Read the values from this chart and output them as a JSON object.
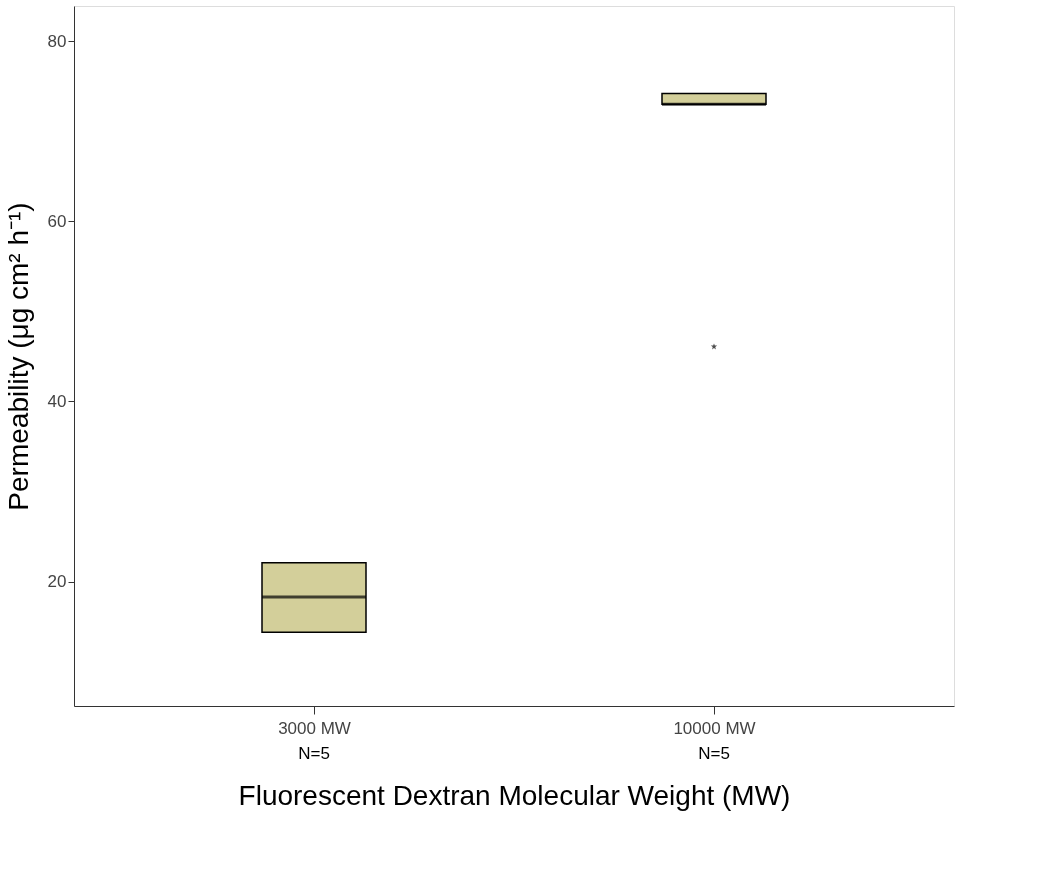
{
  "chart_data": {
    "type": "box",
    "xlabel": "Fluorescent Dextran Molecular Weight (MW)",
    "ylabel": "Permeability (μg cm² h⁻¹)",
    "categories": [
      "3000 MW",
      "10000 MW"
    ],
    "boxes": [
      {
        "low": 14.4,
        "q1": 14.4,
        "median": 18.3,
        "q3": 22.1,
        "high": 22.1
      },
      {
        "low": 73.0,
        "q1": 73.0,
        "median": 73.0,
        "q3": 74.2,
        "high": 74.2,
        "outliers": [
          46.1
        ]
      }
    ],
    "color": "#d3cf9a",
    "ylim": [
      6.2,
      83.9
    ],
    "yticks": [
      20,
      40,
      60,
      80
    ],
    "annotations": [
      "N=5",
      "N=5"
    ],
    "grid": false,
    "marker": "star"
  }
}
